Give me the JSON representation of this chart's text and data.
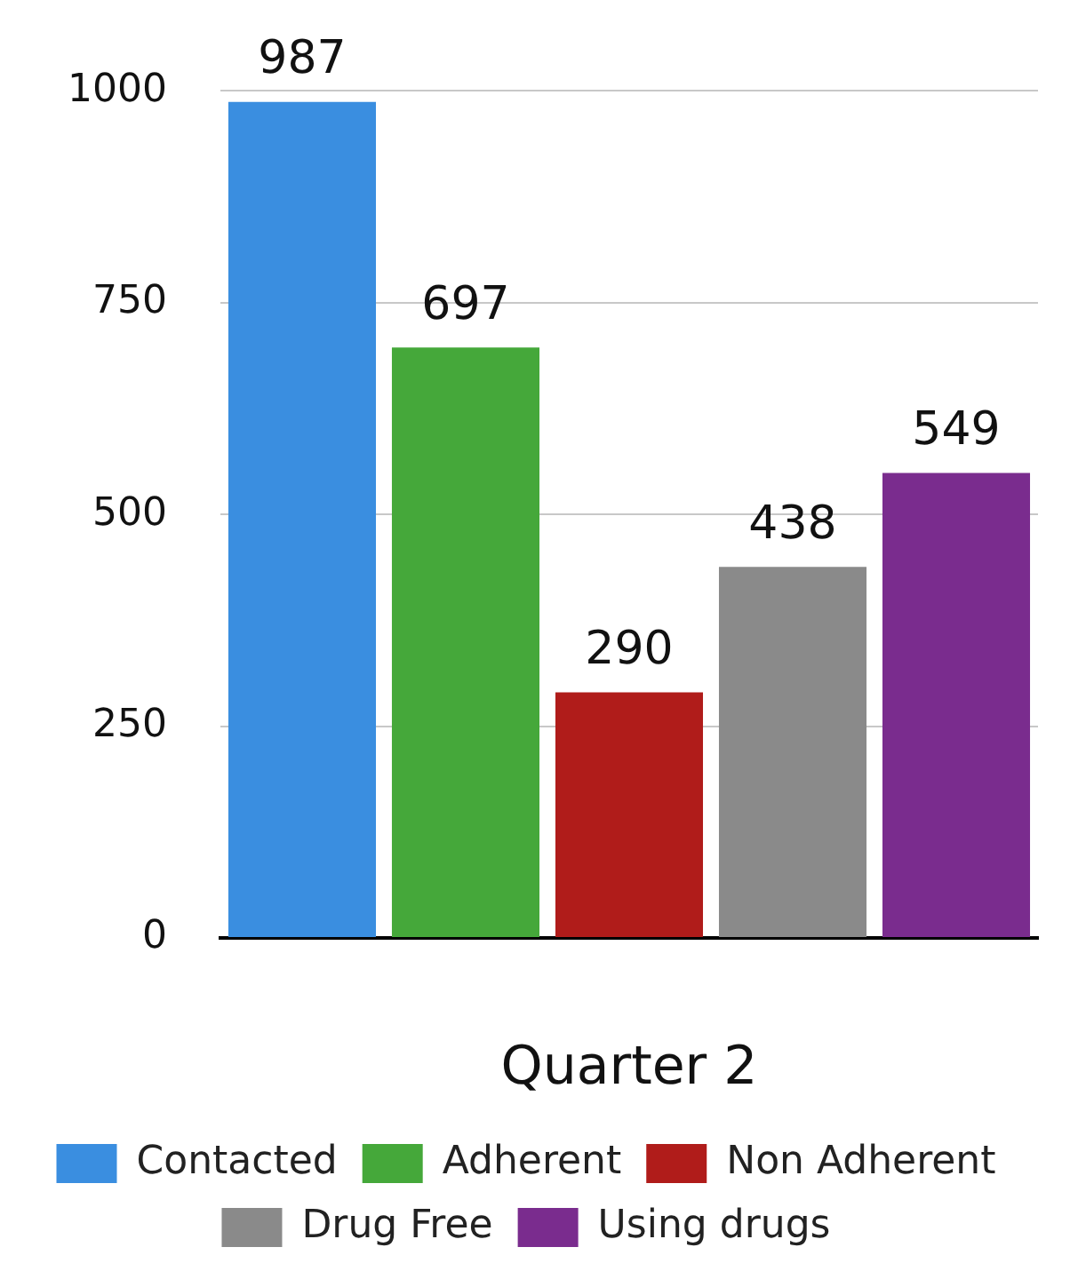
{
  "chart_data": {
    "type": "bar",
    "xlabel": "Quarter 2",
    "categories": [
      null,
      null,
      null,
      null,
      null
    ],
    "series": [
      {
        "name": "Contacted",
        "color": "#3a8ee0",
        "values": [
          987,
          null,
          null,
          null,
          null
        ]
      },
      {
        "name": "Adherent",
        "color": "#45a83a",
        "values": [
          null,
          697,
          null,
          null,
          null
        ]
      },
      {
        "name": "Non Adherent",
        "color": "#b01c1a",
        "values": [
          null,
          null,
          290,
          null,
          null
        ]
      },
      {
        "name": "Drug Free",
        "color": "#8a8a8a",
        "values": [
          null,
          null,
          null,
          438,
          null
        ]
      },
      {
        "name": "Using drugs",
        "color": "#7a2c8e",
        "values": [
          null,
          null,
          null,
          null,
          549
        ]
      }
    ],
    "ylim": [
      0,
      1000
    ],
    "yticks": [
      0,
      250,
      500,
      750,
      1000
    ],
    "grid": "y",
    "legend": "bottom",
    "data_labels": true
  }
}
